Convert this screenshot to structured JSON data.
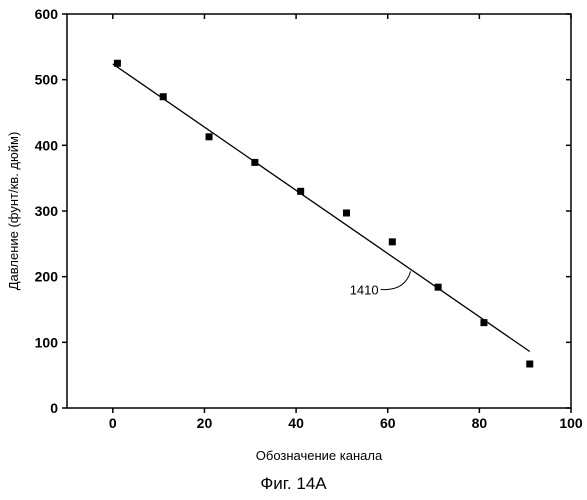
{
  "chart_data": {
    "type": "line",
    "title": "",
    "xlabel": "Обозначение канала",
    "ylabel": "Давление (фунт/кв. дюйм)",
    "xlim": [
      -10,
      100
    ],
    "ylim": [
      0,
      600
    ],
    "xticks": [
      0,
      20,
      40,
      60,
      80,
      100
    ],
    "yticks": [
      0,
      100,
      200,
      300,
      400,
      500,
      600
    ],
    "grid": false,
    "series": [
      {
        "kind": "scatter",
        "marker": "square",
        "x": [
          1,
          11,
          21,
          31,
          41,
          51,
          61,
          71,
          81,
          91
        ],
        "y": [
          525,
          474,
          413,
          374,
          330,
          297,
          253,
          184,
          130,
          67
        ]
      },
      {
        "kind": "fit-line",
        "x": [
          0,
          91
        ],
        "y": [
          524,
          86
        ]
      }
    ],
    "annotations": [
      {
        "text": "1410",
        "target_x": 65,
        "target_y": 208
      }
    ]
  },
  "caption": "Фиг. 14А"
}
